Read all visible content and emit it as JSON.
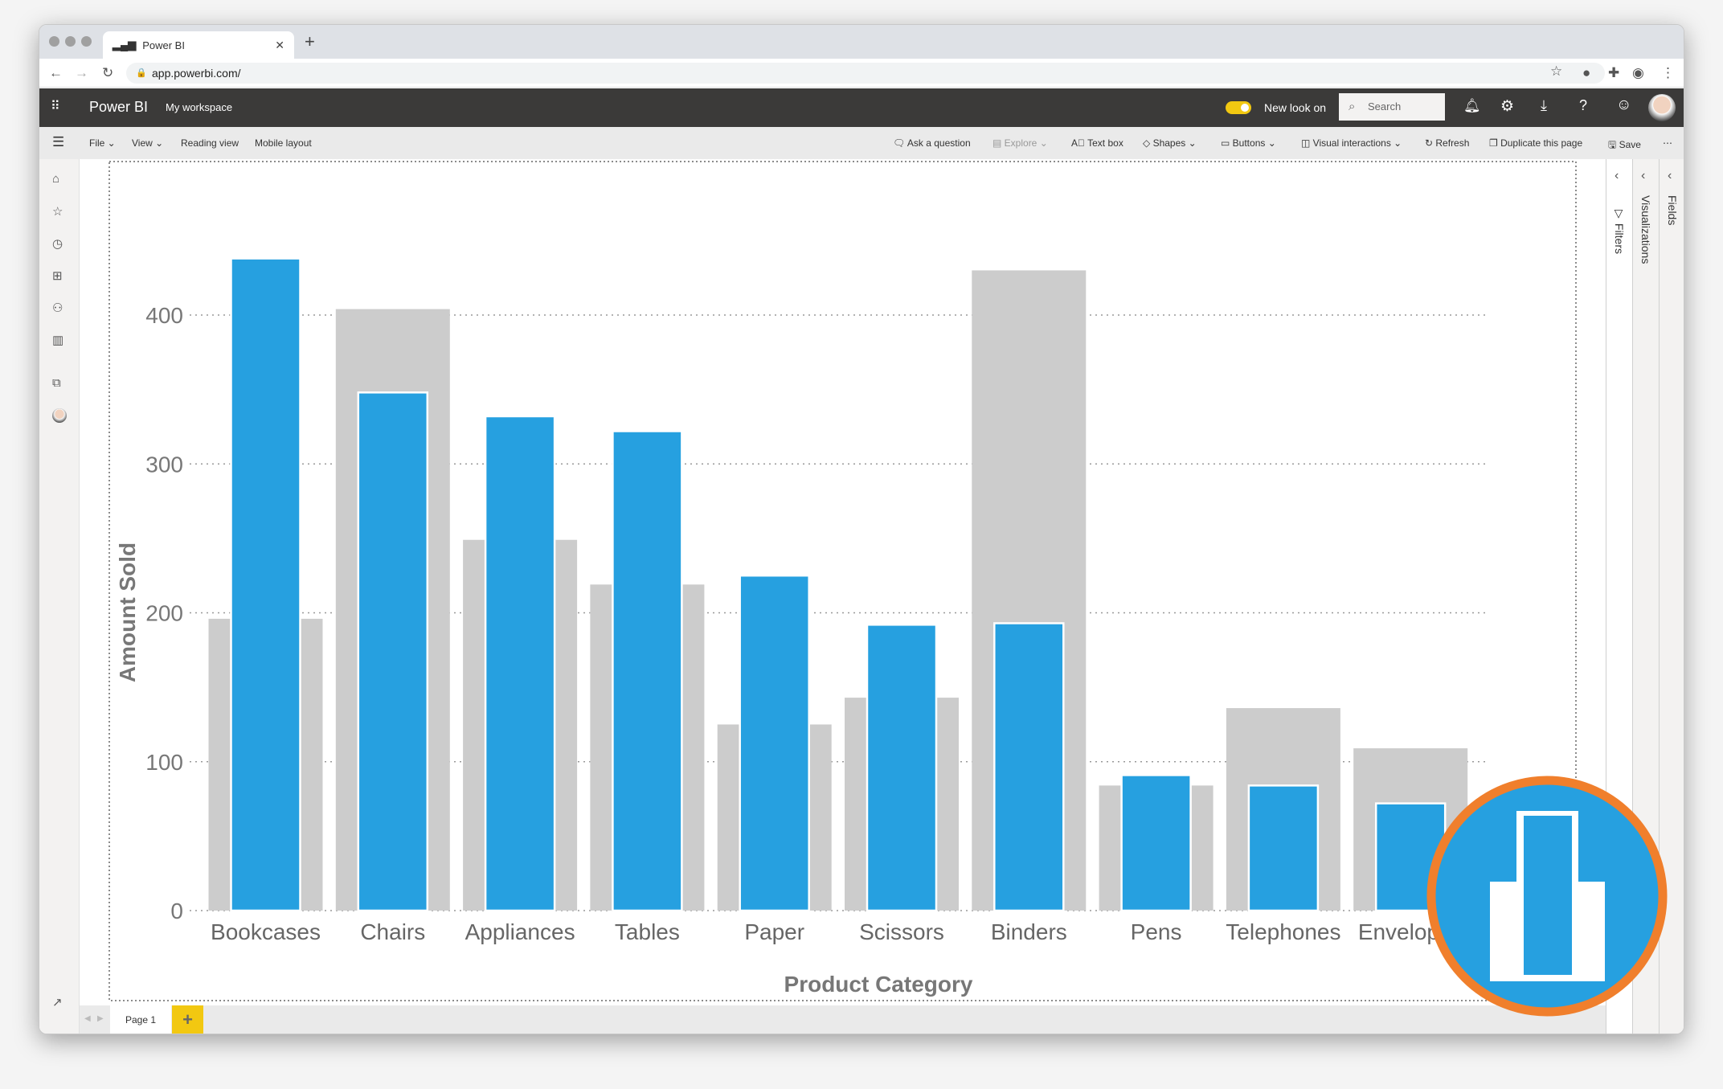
{
  "browser": {
    "tab_title": "Power BI",
    "url": "app.powerbi.com/"
  },
  "header": {
    "app_name": "Power BI",
    "workspace": "My workspace",
    "toggle_label": "New look on",
    "toggle_on": true,
    "search_placeholder": "Search",
    "accent": "#f2c811"
  },
  "toolbar": {
    "left": [
      "File",
      "View",
      "Reading view",
      "Mobile layout"
    ],
    "right": [
      "Ask a question",
      "Explore",
      "Text box",
      "Shapes",
      "Buttons",
      "Visual interactions",
      "Refresh",
      "Duplicate this page",
      "Save"
    ]
  },
  "panes": {
    "filters": "Filters",
    "visualizations": "Visualizations",
    "fields": "Fields"
  },
  "pages": {
    "tabs": [
      "Page 1"
    ],
    "add": "+"
  },
  "chart_data": {
    "type": "bar",
    "xlabel": "Product Category",
    "ylabel": "Amount Sold",
    "ylim": [
      0,
      440
    ],
    "yticks": [
      0,
      100,
      200,
      300,
      400
    ],
    "grid": true,
    "categories": [
      "Bookcases",
      "Chairs",
      "Appliances",
      "Tables",
      "Paper",
      "Scissors",
      "Binders",
      "Pens",
      "Telephones",
      "Envelopes"
    ],
    "series": [
      {
        "values": [
          196,
          404,
          249,
          219,
          125,
          143,
          430,
          84,
          136,
          109
        ],
        "color": "#cccccc"
      },
      {
        "values": [
          438,
          348,
          332,
          322,
          225,
          192,
          193,
          91,
          84,
          72
        ],
        "color": "#26a0e0"
      }
    ]
  }
}
